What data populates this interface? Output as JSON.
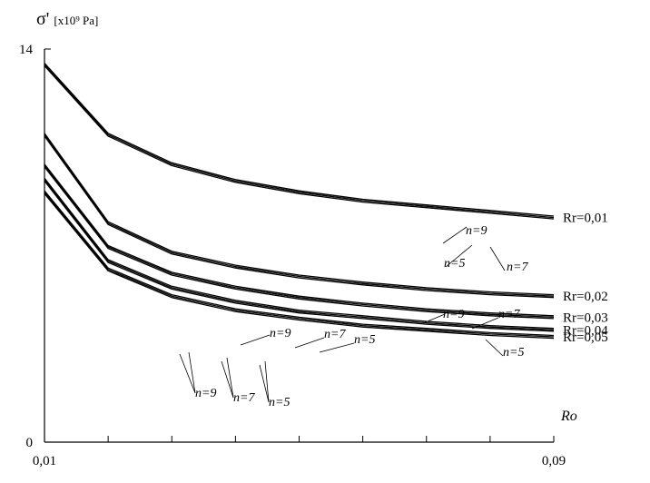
{
  "chart_data": {
    "type": "line",
    "ylabel_symbol": "σ'",
    "ylabel_unit": "[x10⁹ Pa]",
    "xlabel": "Ro",
    "xlim": [
      0.01,
      0.09
    ],
    "ylim": [
      0,
      14
    ],
    "xtick_labels": [
      "0,01",
      "0,09"
    ],
    "ytick_labels": [
      "0",
      "14"
    ],
    "x": [
      0.01,
      0.02,
      0.03,
      0.04,
      0.05,
      0.06,
      0.07,
      0.08,
      0.09
    ],
    "groups": [
      {
        "label": "Rr=0,01",
        "series": [
          {
            "name": "n=5",
            "values": [
              13.4,
              10.9,
              9.85,
              9.25,
              8.85,
              8.55,
              8.35,
              8.15,
              7.95
            ]
          },
          {
            "name": "n=7",
            "values": [
              13.45,
              10.95,
              9.9,
              9.3,
              8.9,
              8.6,
              8.4,
              8.2,
              8.0
            ]
          },
          {
            "name": "n=9",
            "values": [
              13.5,
              11.0,
              9.95,
              9.35,
              8.95,
              8.65,
              8.45,
              8.25,
              8.05
            ]
          }
        ]
      },
      {
        "label": "Rr=0,02",
        "series": [
          {
            "name": "n=5",
            "values": [
              10.9,
              7.75,
              6.7,
              6.2,
              5.85,
              5.6,
              5.4,
              5.25,
              5.15
            ]
          },
          {
            "name": "n=7",
            "values": [
              10.95,
              7.8,
              6.75,
              6.25,
              5.9,
              5.65,
              5.45,
              5.3,
              5.2
            ]
          },
          {
            "name": "n=9",
            "values": [
              11.0,
              7.85,
              6.8,
              6.3,
              5.95,
              5.7,
              5.5,
              5.35,
              5.25
            ]
          }
        ]
      },
      {
        "label": "Rr=0,03",
        "series": [
          {
            "name": "n=5",
            "values": [
              9.8,
              6.9,
              5.95,
              5.45,
              5.1,
              4.85,
              4.65,
              4.5,
              4.4
            ]
          },
          {
            "name": "n=7",
            "values": [
              9.85,
              6.95,
              6.0,
              5.5,
              5.15,
              4.9,
              4.7,
              4.55,
              4.45
            ]
          },
          {
            "name": "n=9",
            "values": [
              9.9,
              7.0,
              6.05,
              5.55,
              5.2,
              4.95,
              4.75,
              4.6,
              4.5
            ]
          }
        ]
      },
      {
        "label": "Rr=0,04",
        "series": [
          {
            "name": "n=5",
            "values": [
              9.3,
              6.4,
              5.45,
              4.95,
              4.6,
              4.4,
              4.2,
              4.05,
              3.95
            ]
          },
          {
            "name": "n=7",
            "values": [
              9.35,
              6.45,
              5.5,
              5.0,
              4.65,
              4.45,
              4.25,
              4.1,
              4.0
            ]
          },
          {
            "name": "n=9",
            "values": [
              9.4,
              6.5,
              5.55,
              5.05,
              4.7,
              4.5,
              4.3,
              4.15,
              4.05
            ]
          }
        ]
      },
      {
        "label": "Rr=0,05",
        "series": [
          {
            "name": "n=5",
            "values": [
              8.85,
              6.1,
              5.15,
              4.65,
              4.35,
              4.1,
              3.95,
              3.8,
              3.7
            ]
          },
          {
            "name": "n=7",
            "values": [
              8.9,
              6.15,
              5.2,
              4.7,
              4.4,
              4.15,
              4.0,
              3.85,
              3.75
            ]
          },
          {
            "name": "n=9",
            "values": [
              8.95,
              6.2,
              5.25,
              4.75,
              4.45,
              4.2,
              4.05,
              3.9,
              3.8
            ]
          }
        ]
      }
    ],
    "annotations": [
      "n=9",
      "n=5",
      "n=7",
      "n=9",
      "n=7",
      "n=5",
      "n=9",
      "n=7",
      "n=5",
      "n=9",
      "n=7",
      "n=5"
    ],
    "grid": false,
    "legend": "none"
  }
}
